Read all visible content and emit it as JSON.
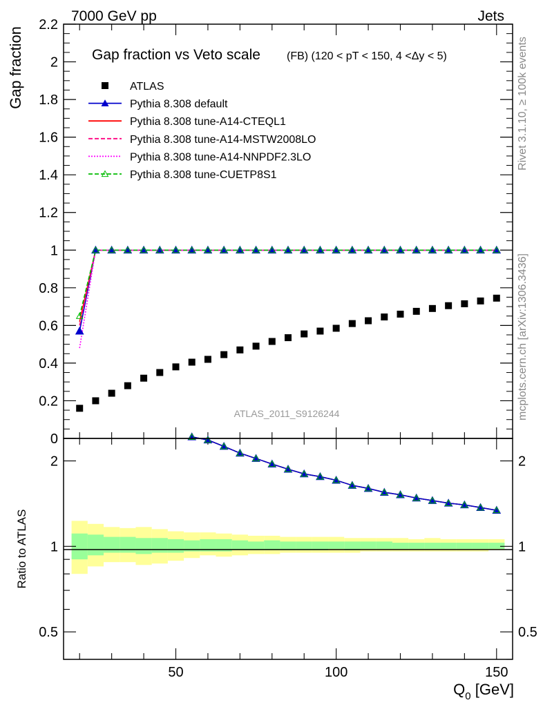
{
  "header": {
    "left": "7000 GeV pp",
    "right": "Jets"
  },
  "side_labels": {
    "rivet": "Rivet 3.1.10, ≥ 100k events",
    "mcplots": "mcplots.cern.ch [arXiv:1306.3436]"
  },
  "chart_data": [
    {
      "type": "scatter",
      "panel": "main",
      "title": "Gap fraction vs Veto scale",
      "subtitle": "(FB) (120 < pT < 150, 4 <Δy < 5)",
      "watermark": "ATLAS_2011_S9126244",
      "xlabel": "Q0 [GeV]",
      "xlabel_main": "Q",
      "xlabel_sub": "0",
      "xlabel_unit": " [GeV]",
      "ylabel": "Gap fraction",
      "xlim": [
        15,
        155
      ],
      "ylim": [
        0,
        2.2
      ],
      "y_ticks": [
        "0",
        "0.2",
        "0.4",
        "0.6",
        "0.8",
        "1",
        "1.2",
        "1.4",
        "1.6",
        "1.8",
        "2",
        "2.2"
      ],
      "x_ticks": [
        "50",
        "100",
        "150"
      ],
      "x": [
        20,
        25,
        30,
        35,
        40,
        45,
        50,
        55,
        60,
        65,
        70,
        75,
        80,
        85,
        90,
        95,
        100,
        105,
        110,
        115,
        120,
        125,
        130,
        135,
        140,
        145,
        150
      ],
      "series": [
        {
          "name": "ATLAS",
          "color": "#000000",
          "style": "data",
          "values": [
            0.16,
            0.2,
            0.24,
            0.28,
            0.32,
            0.35,
            0.38,
            0.405,
            0.42,
            0.445,
            0.47,
            0.49,
            0.515,
            0.535,
            0.555,
            0.57,
            0.585,
            0.61,
            0.625,
            0.645,
            0.66,
            0.675,
            0.69,
            0.705,
            0.715,
            0.73,
            0.745
          ]
        },
        {
          "name": "Pythia 8.308 default",
          "color": "#0000cc",
          "style": "solid-triangle",
          "values": [
            0.57,
            1,
            1,
            1,
            1,
            1,
            1,
            1,
            1,
            1,
            1,
            1,
            1,
            1,
            1,
            1,
            1,
            1,
            1,
            1,
            1,
            1,
            1,
            1,
            1,
            1,
            1
          ]
        },
        {
          "name": "Pythia 8.308 tune-A14-CTEQL1",
          "color": "#ff0000",
          "style": "solid",
          "values": [
            0.62,
            1,
            1,
            1,
            1,
            1,
            1,
            1,
            1,
            1,
            1,
            1,
            1,
            1,
            1,
            1,
            1,
            1,
            1,
            1,
            1,
            1,
            1,
            1,
            1,
            1,
            1
          ]
        },
        {
          "name": "Pythia 8.308 tune-A14-MSTW2008LO",
          "color": "#ff0080",
          "style": "dashed",
          "values": [
            0.6,
            1,
            1,
            1,
            1,
            1,
            1,
            1,
            1,
            1,
            1,
            1,
            1,
            1,
            1,
            1,
            1,
            1,
            1,
            1,
            1,
            1,
            1,
            1,
            1,
            1,
            1
          ]
        },
        {
          "name": "Pythia 8.308 tune-A14-NNPDF2.3LO",
          "color": "#ff00ff",
          "style": "dotted",
          "values": [
            0.48,
            1,
            1,
            1,
            1,
            1,
            1,
            1,
            1,
            1,
            1,
            1,
            1,
            1,
            1,
            1,
            1,
            1,
            1,
            1,
            1,
            1,
            1,
            1,
            1,
            1,
            1
          ]
        },
        {
          "name": "Pythia 8.308 tune-CUETP8S1",
          "color": "#00bb00",
          "style": "dashed-open-triangle",
          "values": [
            0.65,
            1,
            1,
            1,
            1,
            1,
            1,
            1,
            1,
            1,
            1,
            1,
            1,
            1,
            1,
            1,
            1,
            1,
            1,
            1,
            1,
            1,
            1,
            1,
            1,
            1,
            1
          ]
        }
      ]
    },
    {
      "type": "line",
      "panel": "ratio",
      "ylabel": "Ratio to ATLAS",
      "scale": "log",
      "ylim": [
        0.4,
        2.4
      ],
      "y_ticks": [
        "0.5",
        "1",
        "2"
      ],
      "x": [
        55,
        60,
        65,
        70,
        75,
        80,
        85,
        90,
        95,
        100,
        105,
        110,
        115,
        120,
        125,
        130,
        135,
        140,
        145,
        150
      ],
      "values": [
        2.43,
        2.37,
        2.25,
        2.13,
        2.04,
        1.95,
        1.87,
        1.8,
        1.76,
        1.71,
        1.64,
        1.6,
        1.55,
        1.52,
        1.48,
        1.45,
        1.42,
        1.4,
        1.37,
        1.34
      ],
      "band_edges": [
        17.5,
        22.5,
        27.5,
        32.5,
        37.5,
        42.5,
        47.5,
        52.5,
        57.5,
        62.5,
        67.5,
        72.5,
        77.5,
        82.5,
        87.5,
        92.5,
        97.5,
        102.5,
        107.5,
        112.5,
        117.5,
        122.5,
        127.5,
        132.5,
        137.5,
        142.5,
        147.5,
        152.5
      ],
      "band_inner": [
        [
          0.9,
          1.11
        ],
        [
          0.93,
          1.1
        ],
        [
          0.95,
          1.08
        ],
        [
          0.95,
          1.08
        ],
        [
          0.94,
          1.07
        ],
        [
          0.95,
          1.07
        ],
        [
          0.95,
          1.06
        ],
        [
          0.96,
          1.05
        ],
        [
          0.96,
          1.06
        ],
        [
          0.96,
          1.06
        ],
        [
          0.97,
          1.05
        ],
        [
          0.97,
          1.04
        ],
        [
          0.97,
          1.05
        ],
        [
          0.97,
          1.04
        ],
        [
          0.97,
          1.04
        ],
        [
          0.97,
          1.04
        ],
        [
          0.98,
          1.04
        ],
        [
          0.97,
          1.04
        ],
        [
          0.98,
          1.04
        ],
        [
          0.98,
          1.04
        ],
        [
          0.98,
          1.03
        ],
        [
          0.98,
          1.03
        ],
        [
          0.98,
          1.03
        ],
        [
          0.98,
          1.03
        ],
        [
          0.98,
          1.03
        ],
        [
          0.98,
          1.03
        ],
        [
          0.98,
          1.03
        ]
      ],
      "band_outer": [
        [
          0.8,
          1.23
        ],
        [
          0.85,
          1.2
        ],
        [
          0.88,
          1.17
        ],
        [
          0.88,
          1.16
        ],
        [
          0.86,
          1.17
        ],
        [
          0.87,
          1.15
        ],
        [
          0.89,
          1.13
        ],
        [
          0.91,
          1.12
        ],
        [
          0.93,
          1.12
        ],
        [
          0.92,
          1.11
        ],
        [
          0.93,
          1.1
        ],
        [
          0.94,
          1.09
        ],
        [
          0.94,
          1.09
        ],
        [
          0.95,
          1.08
        ],
        [
          0.95,
          1.08
        ],
        [
          0.95,
          1.08
        ],
        [
          0.95,
          1.08
        ],
        [
          0.95,
          1.07
        ],
        [
          0.96,
          1.07
        ],
        [
          0.96,
          1.07
        ],
        [
          0.96,
          1.07
        ],
        [
          0.96,
          1.06
        ],
        [
          0.96,
          1.07
        ],
        [
          0.96,
          1.06
        ],
        [
          0.96,
          1.06
        ],
        [
          0.96,
          1.06
        ],
        [
          0.97,
          1.06
        ]
      ],
      "band_inner_color": "#99ff99",
      "band_outer_color": "#ffff99"
    }
  ]
}
